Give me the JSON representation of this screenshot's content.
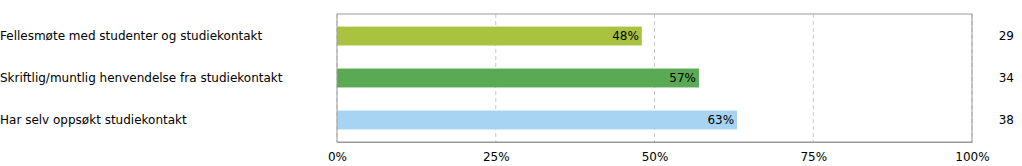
{
  "chart_data": {
    "type": "bar",
    "orientation": "horizontal",
    "categories": [
      "Fellesmøte med studenter og studiekontakt",
      "Skriftlig/muntlig henvendelse fra studiekontakt",
      "Har selv oppsøkt studiekontakt"
    ],
    "values": [
      48,
      57,
      63
    ],
    "value_labels": [
      "48%",
      "57%",
      "63%"
    ],
    "colors": [
      "#a9c23f",
      "#5aaa55",
      "#a8d4f4"
    ],
    "counts": [
      29,
      34,
      38
    ],
    "xlim": [
      0,
      100
    ],
    "xticks": [
      {
        "value": 0,
        "label": "0%"
      },
      {
        "value": 25,
        "label": "25%"
      },
      {
        "value": 50,
        "label": "50%"
      },
      {
        "value": 75,
        "label": "75%"
      },
      {
        "value": 100,
        "label": "100%"
      }
    ],
    "grid": true,
    "data_labels": true
  }
}
